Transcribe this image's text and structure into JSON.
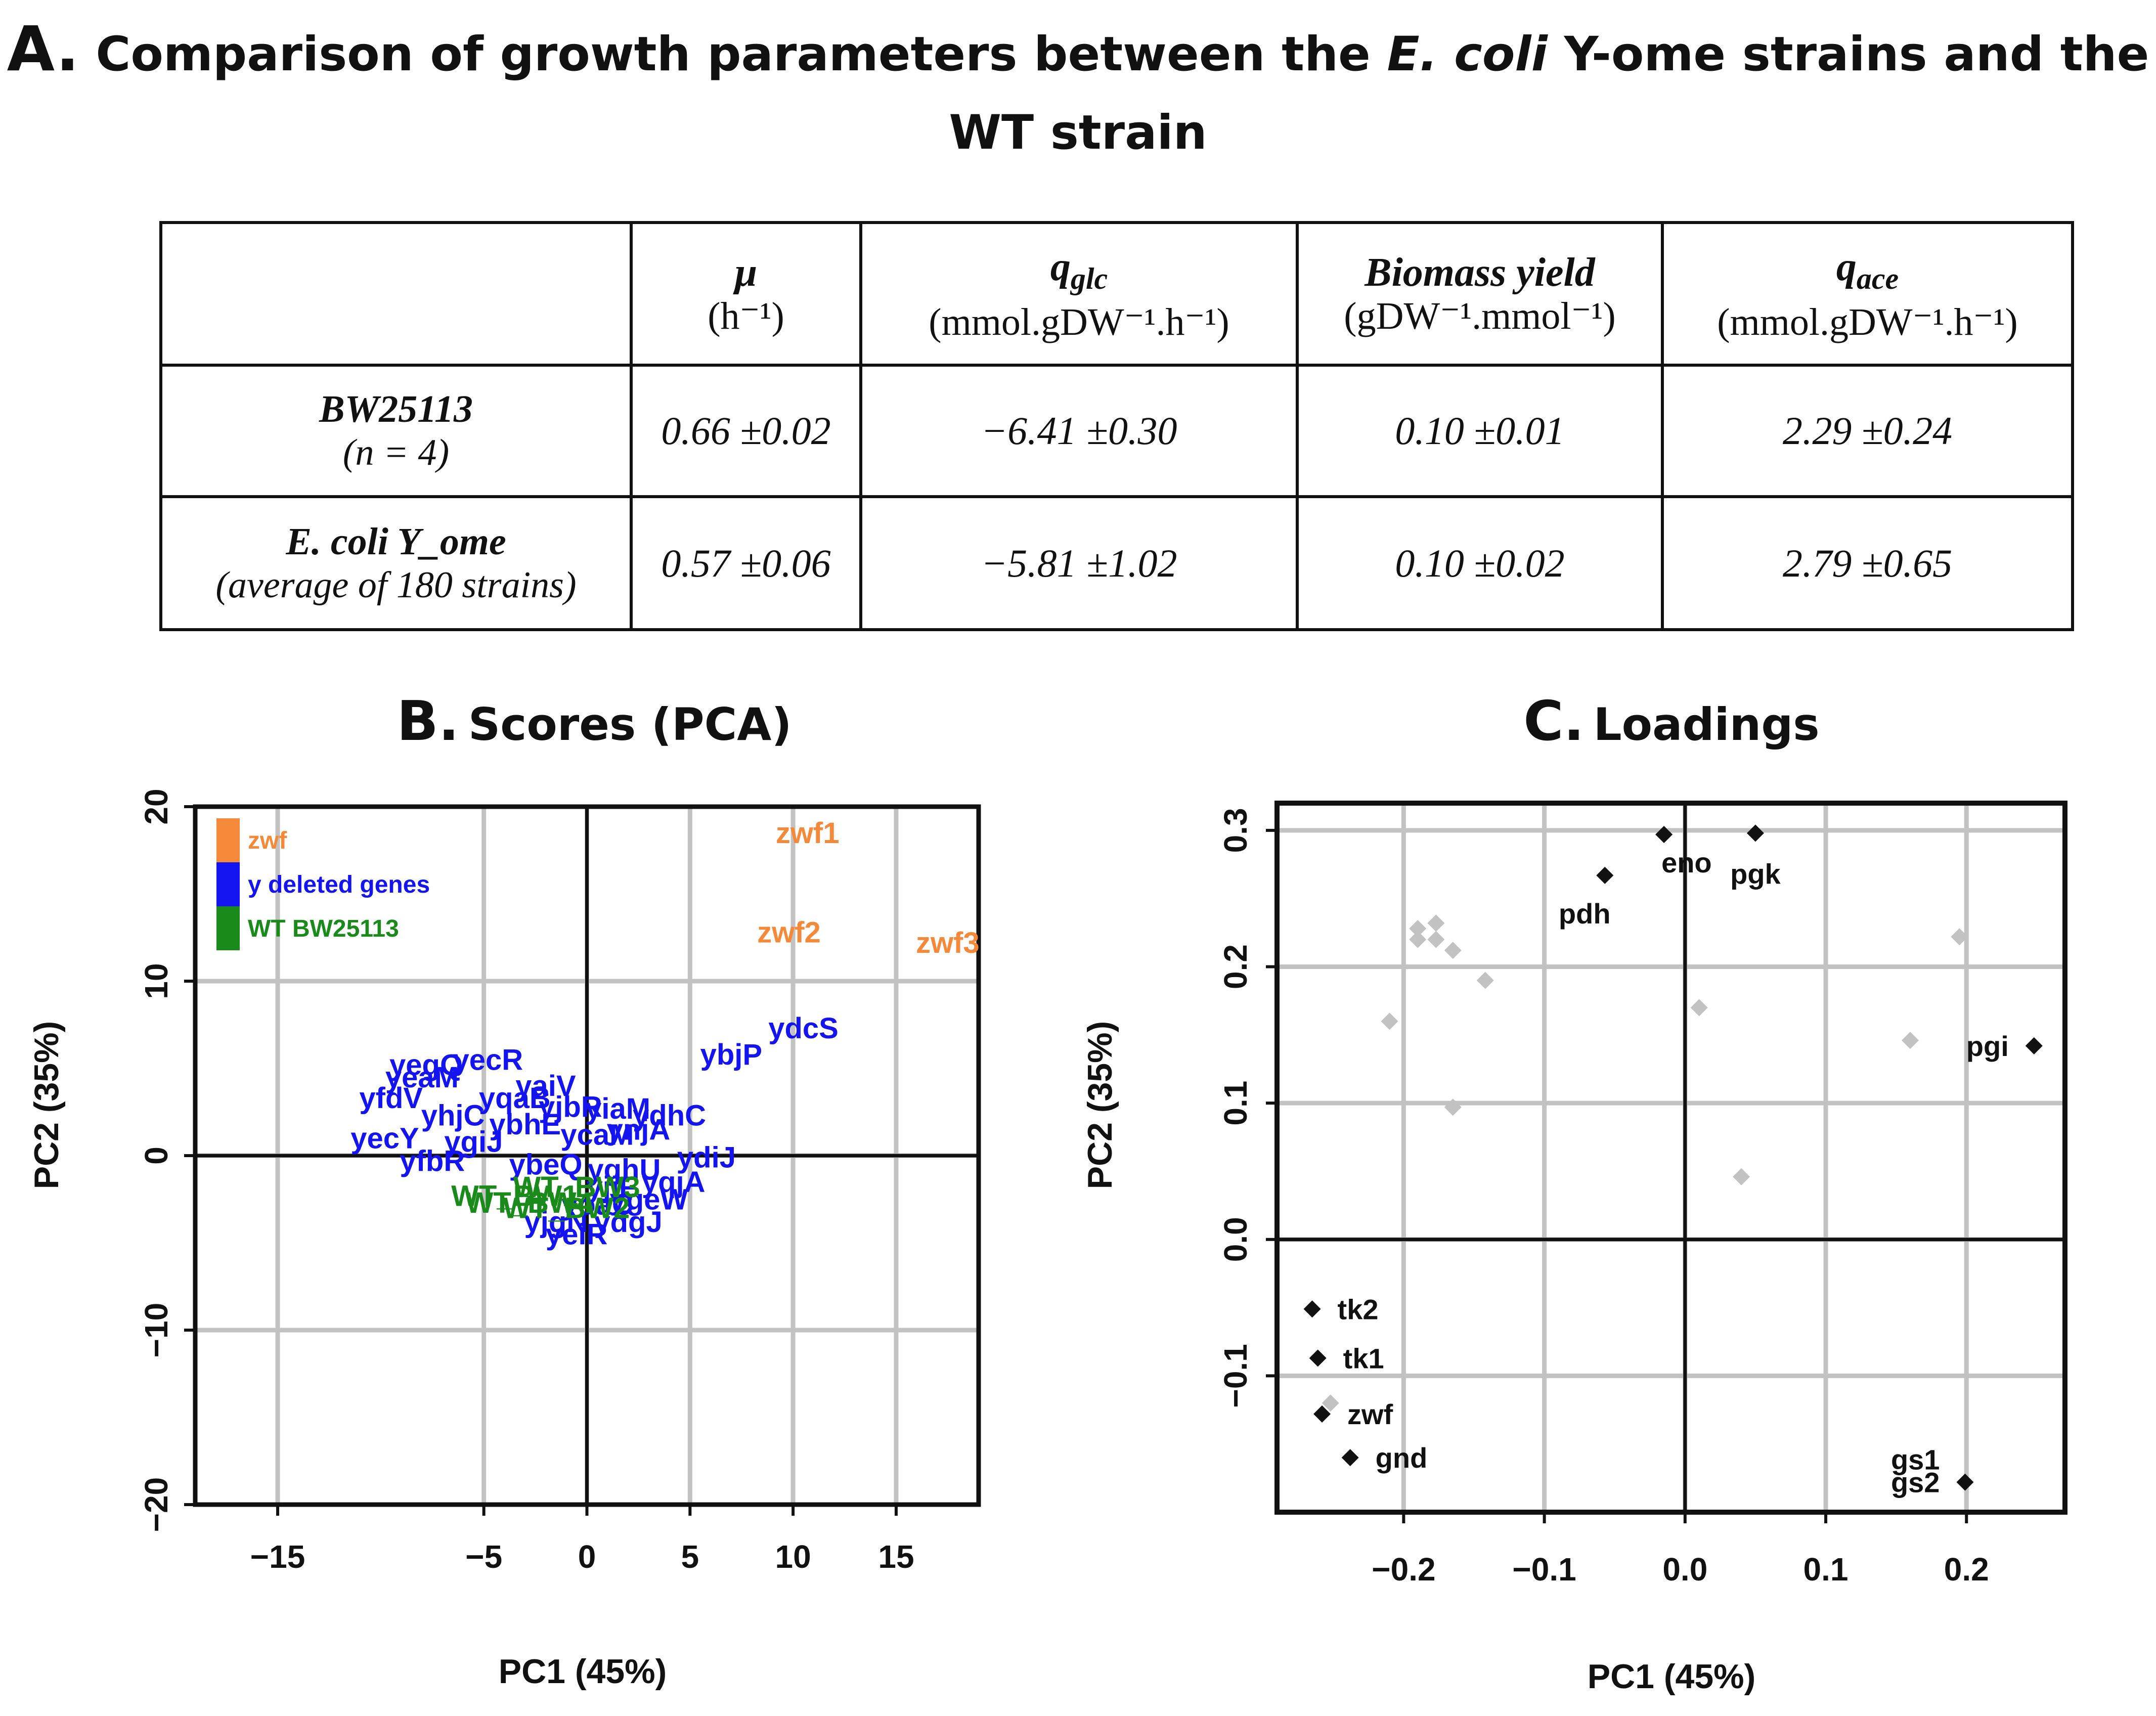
{
  "title": {
    "letter": "A.",
    "before": "Comparison of growth parameters between the ",
    "italic": "E. coli",
    "after": "  Y-ome strains and the WT strain"
  },
  "table": {
    "headers": [
      {
        "symbol": "μ",
        "sub": "",
        "unit": "(h⁻¹)"
      },
      {
        "symbol": "q",
        "sub": "glc",
        "unit": "(mmol.gDW⁻¹.h⁻¹)"
      },
      {
        "symbol": "Biomass yield",
        "sub": "",
        "unit": "(gDW⁻¹.mmol⁻¹)"
      },
      {
        "symbol": "q",
        "sub": "ace",
        "unit": "(mmol.gDW⁻¹.h⁻¹)"
      }
    ],
    "rows": [
      {
        "name": "BW25113",
        "sub": "(n = 4)",
        "values": [
          "0.66 ±0.02",
          "−6.41 ±0.30",
          "0.10 ±0.01",
          "2.29 ±0.24"
        ]
      },
      {
        "name": "E. coli Y_ome",
        "sub": "(average of 180 strains)",
        "values": [
          "0.57 ±0.06",
          "−5.81 ±1.02",
          "0.10 ±0.02",
          "2.79 ±0.65"
        ]
      }
    ]
  },
  "colors": {
    "zwf": "#F5893A",
    "y": "#1414F0",
    "wt": "#1A8A1A",
    "grey": "#C2C2C2",
    "black": "#111111"
  },
  "chart_data": [
    {
      "type": "scatter",
      "letter": "B.",
      "title": "Scores (PCA)",
      "xlabel": "PC1 (45%)",
      "ylabel": "PC2 (35%)",
      "xlim": [
        -19,
        19
      ],
      "ylim": [
        -20,
        20
      ],
      "xticks": [
        -15,
        -5,
        0,
        5,
        10,
        15
      ],
      "yticks": [
        -20,
        -10,
        0,
        10,
        20
      ],
      "grid": true,
      "legend": [
        {
          "label": "zwf",
          "color": "#F5893A"
        },
        {
          "label": "y deleted genes",
          "color": "#1414F0"
        },
        {
          "label": "WT BW25113",
          "color": "#1A8A1A"
        }
      ],
      "series": [
        {
          "name": "zwf",
          "color": "#F5893A",
          "points": [
            {
              "label": "zwf1",
              "x": 10.7,
              "y": 18.5
            },
            {
              "label": "zwf2",
              "x": 9.8,
              "y": 12.8
            },
            {
              "label": "zwf3",
              "x": 17.5,
              "y": 12.2
            }
          ]
        },
        {
          "name": "y deleted genes",
          "color": "#1414F0",
          "points": [
            {
              "label": "ydcS",
              "x": 10.5,
              "y": 7.3
            },
            {
              "label": "ybjP",
              "x": 7.0,
              "y": 5.8
            },
            {
              "label": "yegQ",
              "x": -7.8,
              "y": 5.2
            },
            {
              "label": "yecR",
              "x": -4.8,
              "y": 5.5
            },
            {
              "label": "yfdV",
              "x": -9.5,
              "y": 3.3
            },
            {
              "label": "yecY",
              "x": -9.8,
              "y": 1.0
            },
            {
              "label": "yeaM",
              "x": -8.0,
              "y": 4.5
            },
            {
              "label": "yaiV",
              "x": -2.0,
              "y": 4.0
            },
            {
              "label": "yhjC",
              "x": -6.5,
              "y": 2.3
            },
            {
              "label": "yqaB",
              "x": -3.5,
              "y": 3.3
            },
            {
              "label": "yjbR",
              "x": -0.8,
              "y": 2.8
            },
            {
              "label": "yiaM",
              "x": 1.5,
              "y": 2.7
            },
            {
              "label": "ydhC",
              "x": 4.0,
              "y": 2.3
            },
            {
              "label": "ynjA",
              "x": 2.5,
              "y": 1.5
            },
            {
              "label": "ybhE",
              "x": -3.0,
              "y": 1.8
            },
            {
              "label": "ygiJ",
              "x": -5.5,
              "y": 0.8
            },
            {
              "label": "ycaM",
              "x": 0.5,
              "y": 1.2
            },
            {
              "label": "ydiJ",
              "x": 5.8,
              "y": -0.1
            },
            {
              "label": "yqjA",
              "x": 4.2,
              "y": -1.5
            },
            {
              "label": "yfbR",
              "x": -7.5,
              "y": -0.3
            },
            {
              "label": "yghU",
              "x": 1.8,
              "y": -0.8
            },
            {
              "label": "ybeQ",
              "x": -2.0,
              "y": -0.5
            },
            {
              "label": "ygeW",
              "x": 3.0,
              "y": -2.5
            },
            {
              "label": "yjgN",
              "x": -1.5,
              "y": -3.8
            },
            {
              "label": "ydgJ",
              "x": 2.0,
              "y": -3.8
            },
            {
              "label": "yoaC",
              "x": 0.5,
              "y": -2.8
            },
            {
              "label": "yeiR",
              "x": -0.5,
              "y": -4.5
            },
            {
              "label": "yjiF",
              "x": 1.2,
              "y": -1.8
            }
          ]
        },
        {
          "name": "WT BW25113",
          "color": "#1A8A1A",
          "points": [
            {
              "label": "WT_BW1",
              "x": -3.5,
              "y": -2.3
            },
            {
              "label": "WT_BW2",
              "x": -1.0,
              "y": -3.0
            },
            {
              "label": "WT_BW3",
              "x": -0.5,
              "y": -1.8
            },
            {
              "label": "WT_BW4",
              "x": -2.8,
              "y": -2.7
            }
          ]
        }
      ]
    },
    {
      "type": "scatter",
      "letter": "C.",
      "title": "Loadings",
      "xlabel": "PC1 (45%)",
      "ylabel": "PC2 (35%)",
      "xlim": [
        -0.29,
        0.27
      ],
      "ylim": [
        -0.2,
        0.32
      ],
      "xticks": [
        -0.2,
        -0.1,
        0.0,
        0.1,
        0.2
      ],
      "xtick_labels": [
        "−0.2",
        "−0.1",
        "0.0",
        "0.1",
        "0.2"
      ],
      "yticks": [
        -0.1,
        0.0,
        0.1,
        0.2,
        0.3
      ],
      "ytick_labels": [
        "−0.1",
        "0.0",
        "0.1",
        "0.2",
        "0.3"
      ],
      "grid": true,
      "labeled_points": [
        {
          "label": "eno",
          "x": -0.015,
          "y": 0.297,
          "anchor": "below-right"
        },
        {
          "label": "pgk",
          "x": 0.05,
          "y": 0.298,
          "anchor": "below"
        },
        {
          "label": "pdh",
          "x": -0.057,
          "y": 0.267,
          "anchor": "below-left"
        },
        {
          "label": "pgi",
          "x": 0.248,
          "y": 0.142,
          "anchor": "left"
        },
        {
          "label": "tk2",
          "x": -0.265,
          "y": -0.051,
          "anchor": "right"
        },
        {
          "label": "tk1",
          "x": -0.261,
          "y": -0.087,
          "anchor": "right"
        },
        {
          "label": "zwf",
          "x": -0.258,
          "y": -0.128,
          "anchor": "right"
        },
        {
          "label": "gnd",
          "x": -0.238,
          "y": -0.16,
          "anchor": "right"
        },
        {
          "label": "gs1",
          "x": 0.199,
          "y": -0.178,
          "anchor": "upper-left"
        },
        {
          "label": "gs2",
          "x": 0.199,
          "y": -0.178,
          "anchor": "left"
        }
      ],
      "unlabeled_points": [
        {
          "x": -0.21,
          "y": 0.16
        },
        {
          "x": -0.19,
          "y": 0.228
        },
        {
          "x": -0.19,
          "y": 0.22
        },
        {
          "x": -0.177,
          "y": 0.232
        },
        {
          "x": -0.177,
          "y": 0.22
        },
        {
          "x": -0.165,
          "y": 0.212
        },
        {
          "x": -0.142,
          "y": 0.19
        },
        {
          "x": -0.165,
          "y": 0.097
        },
        {
          "x": 0.01,
          "y": 0.17
        },
        {
          "x": 0.04,
          "y": 0.046
        },
        {
          "x": 0.16,
          "y": 0.146
        },
        {
          "x": 0.195,
          "y": 0.222
        },
        {
          "x": -0.252,
          "y": -0.12
        }
      ]
    }
  ]
}
